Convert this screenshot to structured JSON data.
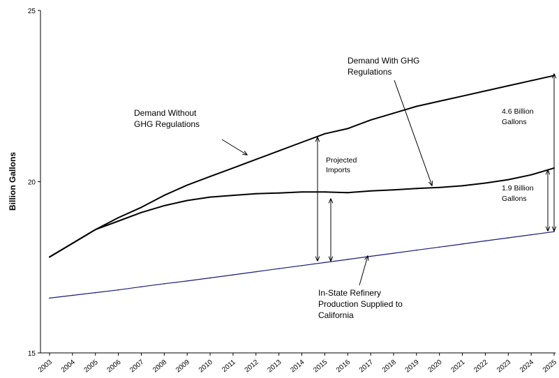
{
  "chart_data": {
    "type": "line",
    "title": "",
    "xlabel": "",
    "ylabel": "Billion Gallons",
    "ylim": [
      15,
      25
    ],
    "y_ticks": [
      15,
      20,
      25
    ],
    "grid": false,
    "legend": "none",
    "x": [
      "2003",
      "2004",
      "2005",
      "2006",
      "2007",
      "2008",
      "2009",
      "2010",
      "2011",
      "2012",
      "2013",
      "2014",
      "2015",
      "2016",
      "2017",
      "2018",
      "2019",
      "2020",
      "2021",
      "2022",
      "2023",
      "2024",
      "2025"
    ],
    "series": [
      {
        "color": "#000000",
        "values": [
          17.8,
          18.2,
          18.6,
          18.95,
          19.25,
          19.6,
          19.9,
          20.15,
          20.4,
          20.65,
          20.9,
          21.15,
          21.4,
          21.55,
          21.8,
          22.0,
          22.2,
          22.35,
          22.5,
          22.65,
          22.8,
          22.95,
          23.1
        ]
      },
      {
        "color": "#000000",
        "values": [
          17.8,
          18.2,
          18.6,
          18.85,
          19.1,
          19.3,
          19.45,
          19.55,
          19.6,
          19.65,
          19.67,
          19.7,
          19.7,
          19.68,
          19.73,
          19.76,
          19.8,
          19.83,
          19.88,
          19.96,
          20.06,
          20.2,
          20.4
        ]
      },
      {
        "color": "#1a1a80",
        "values": [
          16.6,
          16.68,
          16.76,
          16.84,
          16.93,
          17.02,
          17.1,
          17.19,
          17.28,
          17.37,
          17.46,
          17.55,
          17.64,
          17.73,
          17.82,
          17.91,
          18.0,
          18.09,
          18.18,
          18.27,
          18.36,
          18.45,
          18.54
        ]
      }
    ],
    "annotations": {
      "demand_without_line1": "Demand Without",
      "demand_without_line2": "GHG Regulations",
      "demand_with_line1": "Demand With GHG",
      "demand_with_line2": "Regulations",
      "projected_line1": "Projected",
      "projected_line2": "Imports",
      "gap_46_line1": "4.6 Billion",
      "gap_46_line2": "Gallons",
      "gap_19_line1": "1.9 Billion",
      "gap_19_line2": "Gallons",
      "instate_line1": "In-State Refinery",
      "instate_line2": "Production Supplied  to",
      "instate_line3": "California"
    }
  }
}
